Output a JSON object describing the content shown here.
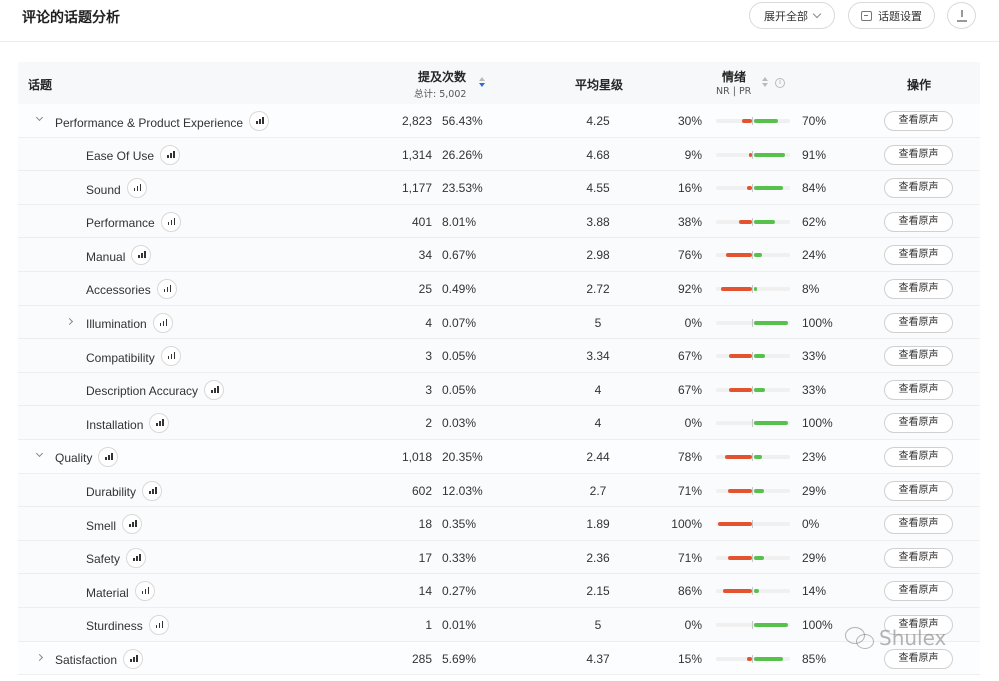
{
  "header": {
    "title": "评论的话题分析",
    "expand_all_label": "展开全部",
    "topic_settings_label": "话题设置"
  },
  "columns": {
    "topic": "话题",
    "mentions": "提及次数",
    "mentions_total": "总计: 5,002",
    "avg_rating": "平均星级",
    "sentiment": "情绪",
    "sentiment_sub": "NR | PR",
    "actions": "操作"
  },
  "view_label": "查看原声",
  "rows": [
    {
      "name": "Performance & Product Experience",
      "level": 1,
      "toggle": "open",
      "count": "2,823",
      "pct": "56.43%",
      "rating": "4.25",
      "nr": "30%",
      "pr": "70%",
      "nr_value": 30,
      "pr_value": 70
    },
    {
      "name": "Ease Of Use",
      "level": 2,
      "toggle": "",
      "count": "1,314",
      "pct": "26.26%",
      "rating": "4.68",
      "nr": "9%",
      "pr": "91%",
      "nr_value": 9,
      "pr_value": 91
    },
    {
      "name": "Sound",
      "level": 2,
      "toggle": "",
      "count": "1,177",
      "pct": "23.53%",
      "rating": "4.55",
      "nr": "16%",
      "pr": "84%",
      "nr_value": 16,
      "pr_value": 84
    },
    {
      "name": "Performance",
      "level": 2,
      "toggle": "",
      "count": "401",
      "pct": "8.01%",
      "rating": "3.88",
      "nr": "38%",
      "pr": "62%",
      "nr_value": 38,
      "pr_value": 62
    },
    {
      "name": "Manual",
      "level": 2,
      "toggle": "",
      "count": "34",
      "pct": "0.67%",
      "rating": "2.98",
      "nr": "76%",
      "pr": "24%",
      "nr_value": 76,
      "pr_value": 24
    },
    {
      "name": "Accessories",
      "level": 2,
      "toggle": "",
      "count": "25",
      "pct": "0.49%",
      "rating": "2.72",
      "nr": "92%",
      "pr": "8%",
      "nr_value": 92,
      "pr_value": 8
    },
    {
      "name": "Illumination",
      "level": 2,
      "toggle": "closed",
      "count": "4",
      "pct": "0.07%",
      "rating": "5",
      "nr": "0%",
      "pr": "100%",
      "nr_value": 0,
      "pr_value": 100
    },
    {
      "name": "Compatibility",
      "level": 2,
      "toggle": "",
      "count": "3",
      "pct": "0.05%",
      "rating": "3.34",
      "nr": "67%",
      "pr": "33%",
      "nr_value": 67,
      "pr_value": 33
    },
    {
      "name": "Description Accuracy",
      "level": 2,
      "toggle": "",
      "count": "3",
      "pct": "0.05%",
      "rating": "4",
      "nr": "67%",
      "pr": "33%",
      "nr_value": 67,
      "pr_value": 33
    },
    {
      "name": "Installation",
      "level": 2,
      "toggle": "",
      "count": "2",
      "pct": "0.03%",
      "rating": "4",
      "nr": "0%",
      "pr": "100%",
      "nr_value": 0,
      "pr_value": 100
    },
    {
      "name": "Quality",
      "level": 1,
      "toggle": "open",
      "count": "1,018",
      "pct": "20.35%",
      "rating": "2.44",
      "nr": "78%",
      "pr": "23%",
      "nr_value": 78,
      "pr_value": 23
    },
    {
      "name": "Durability",
      "level": 2,
      "toggle": "",
      "count": "602",
      "pct": "12.03%",
      "rating": "2.7",
      "nr": "71%",
      "pr": "29%",
      "nr_value": 71,
      "pr_value": 29
    },
    {
      "name": "Smell",
      "level": 2,
      "toggle": "",
      "count": "18",
      "pct": "0.35%",
      "rating": "1.89",
      "nr": "100%",
      "pr": "0%",
      "nr_value": 100,
      "pr_value": 0
    },
    {
      "name": "Safety",
      "level": 2,
      "toggle": "",
      "count": "17",
      "pct": "0.33%",
      "rating": "2.36",
      "nr": "71%",
      "pr": "29%",
      "nr_value": 71,
      "pr_value": 29
    },
    {
      "name": "Material",
      "level": 2,
      "toggle": "",
      "count": "14",
      "pct": "0.27%",
      "rating": "2.15",
      "nr": "86%",
      "pr": "14%",
      "nr_value": 86,
      "pr_value": 14
    },
    {
      "name": "Sturdiness",
      "level": 2,
      "toggle": "",
      "count": "1",
      "pct": "0.01%",
      "rating": "5",
      "nr": "0%",
      "pr": "100%",
      "nr_value": 0,
      "pr_value": 100
    },
    {
      "name": "Satisfaction",
      "level": 1,
      "toggle": "closed",
      "count": "285",
      "pct": "5.69%",
      "rating": "4.37",
      "nr": "15%",
      "pr": "85%",
      "nr_value": 15,
      "pr_value": 85
    }
  ],
  "watermark": "Shulex",
  "colors": {
    "negative": "#e4532f",
    "positive": "#58c14e",
    "sort_active": "#2f6bd8"
  }
}
